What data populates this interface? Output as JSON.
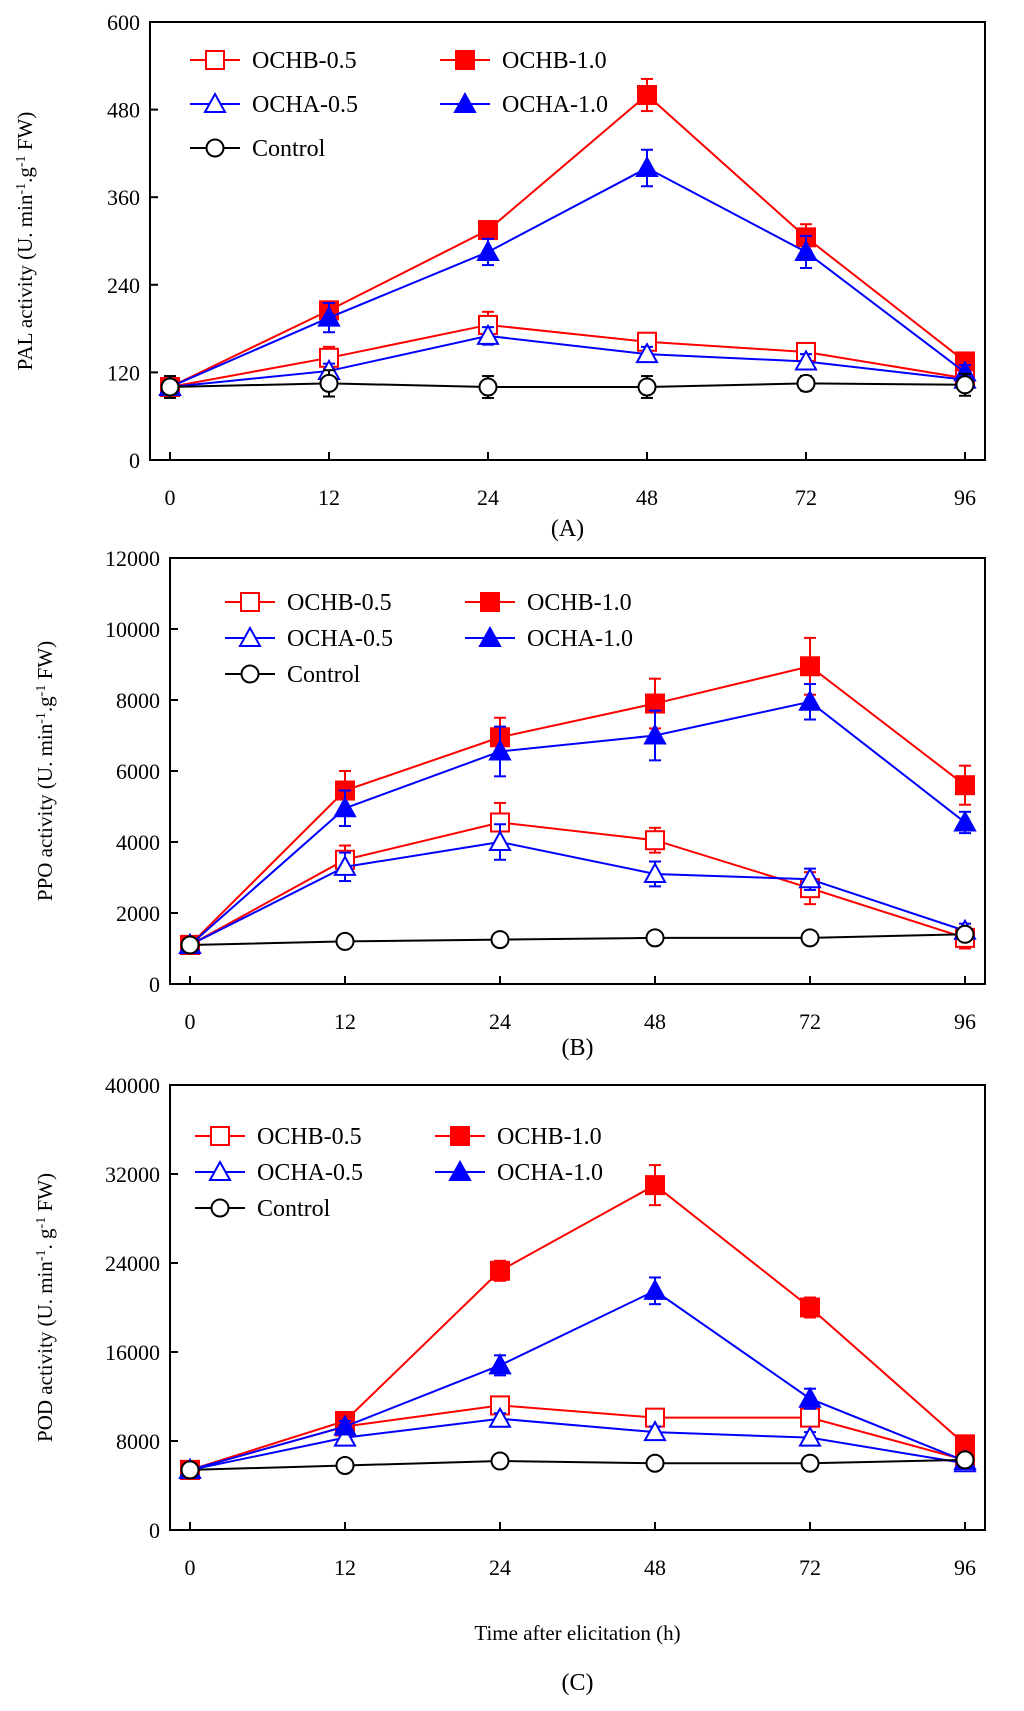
{
  "chart_data": [
    {
      "type": "line",
      "panel_label": "(A)",
      "title": "",
      "xlabel": "",
      "ylabel_parts": [
        "PAL activity (U. min",
        "-1",
        ".g",
        "-1",
        " FW)"
      ],
      "x_categories": [
        "0",
        "12",
        "24",
        "48",
        "72",
        "96"
      ],
      "y_ticks": [
        "0",
        "120",
        "240",
        "360",
        "480",
        "600"
      ],
      "ylim": [
        0,
        600
      ],
      "grid": false,
      "legend_position": "top-left",
      "series": [
        {
          "name": "OCHB-0.5",
          "color": "#ff0000",
          "marker": "square-open",
          "values": [
            100,
            140,
            185,
            162,
            148,
            112
          ],
          "errors": [
            8,
            15,
            18,
            12,
            10,
            8
          ]
        },
        {
          "name": "OCHB-1.0",
          "color": "#ff0000",
          "marker": "square-filled",
          "values": [
            100,
            205,
            315,
            500,
            305,
            135
          ],
          "errors": [
            8,
            12,
            10,
            22,
            18,
            10
          ]
        },
        {
          "name": "OCHA-0.5",
          "color": "#0000ff",
          "marker": "triangle-open",
          "values": [
            100,
            122,
            170,
            145,
            135,
            110
          ],
          "errors": [
            8,
            10,
            12,
            10,
            10,
            8
          ]
        },
        {
          "name": "OCHA-1.0",
          "color": "#0000ff",
          "marker": "triangle-filled",
          "values": [
            100,
            195,
            285,
            400,
            285,
            120
          ],
          "errors": [
            8,
            20,
            18,
            25,
            22,
            10
          ]
        },
        {
          "name": "Control",
          "color": "#000000",
          "marker": "circle-open",
          "values": [
            100,
            105,
            100,
            100,
            105,
            103
          ],
          "errors": [
            15,
            18,
            15,
            15,
            10,
            15
          ]
        }
      ]
    },
    {
      "type": "line",
      "panel_label": "(B)",
      "title": "",
      "xlabel": "",
      "ylabel_parts": [
        "PPO activity (U. min",
        "-1",
        ".g",
        "-1",
        " FW)"
      ],
      "x_categories": [
        "0",
        "12",
        "24",
        "48",
        "72",
        "96"
      ],
      "y_ticks": [
        "0",
        "2000",
        "4000",
        "6000",
        "8000",
        "10000",
        "12000"
      ],
      "ylim": [
        0,
        12000
      ],
      "grid": false,
      "legend_position": "top-left",
      "series": [
        {
          "name": "OCHB-0.5",
          "color": "#ff0000",
          "marker": "square-open",
          "values": [
            1100,
            3500,
            4550,
            4050,
            2700,
            1300
          ],
          "errors": [
            150,
            400,
            550,
            350,
            450,
            300
          ]
        },
        {
          "name": "OCHB-1.0",
          "color": "#ff0000",
          "marker": "square-filled",
          "values": [
            1100,
            5450,
            6950,
            7900,
            8950,
            5600
          ],
          "errors": [
            150,
            550,
            550,
            700,
            800,
            550
          ]
        },
        {
          "name": "OCHA-0.5",
          "color": "#0000ff",
          "marker": "triangle-open",
          "values": [
            1100,
            3300,
            4000,
            3100,
            2950,
            1500
          ],
          "errors": [
            150,
            400,
            500,
            350,
            300,
            200
          ]
        },
        {
          "name": "OCHA-1.0",
          "color": "#0000ff",
          "marker": "triangle-filled",
          "values": [
            1100,
            4950,
            6550,
            7000,
            7950,
            4550
          ],
          "errors": [
            150,
            500,
            700,
            700,
            500,
            300
          ]
        },
        {
          "name": "Control",
          "color": "#000000",
          "marker": "circle-open",
          "values": [
            1100,
            1200,
            1250,
            1300,
            1300,
            1400
          ],
          "errors": [
            100,
            150,
            100,
            100,
            100,
            100
          ]
        }
      ]
    },
    {
      "type": "line",
      "panel_label": "(C)",
      "title": "",
      "xlabel": "Time after elicitation (h)",
      "ylabel_parts": [
        "POD activity (U. min",
        "-1",
        ". g",
        "-1",
        " FW)"
      ],
      "x_categories": [
        "0",
        "12",
        "24",
        "48",
        "72",
        "96"
      ],
      "y_ticks": [
        "0",
        "8000",
        "16000",
        "24000",
        "32000",
        "40000"
      ],
      "ylim": [
        0,
        40000
      ],
      "grid": false,
      "legend_position": "top-left",
      "series": [
        {
          "name": "OCHB-0.5",
          "color": "#ff0000",
          "marker": "square-open",
          "values": [
            5400,
            9300,
            11200,
            10100,
            10100,
            6300
          ],
          "errors": [
            400,
            500,
            500,
            500,
            700,
            400
          ]
        },
        {
          "name": "OCHB-1.0",
          "color": "#ff0000",
          "marker": "square-filled",
          "values": [
            5400,
            9800,
            23300,
            31000,
            20000,
            7700
          ],
          "errors": [
            400,
            500,
            900,
            1800,
            900,
            500
          ]
        },
        {
          "name": "OCHA-0.5",
          "color": "#0000ff",
          "marker": "triangle-open",
          "values": [
            5400,
            8300,
            10000,
            8800,
            8300,
            6000
          ],
          "errors": [
            400,
            500,
            500,
            500,
            500,
            400
          ]
        },
        {
          "name": "OCHA-1.0",
          "color": "#0000ff",
          "marker": "triangle-filled",
          "values": [
            5400,
            9300,
            14800,
            21500,
            11800,
            6200
          ],
          "errors": [
            400,
            500,
            900,
            1200,
            900,
            400
          ]
        },
        {
          "name": "Control",
          "color": "#000000",
          "marker": "circle-open",
          "values": [
            5400,
            5800,
            6200,
            6000,
            6000,
            6300
          ],
          "errors": [
            300,
            300,
            300,
            300,
            300,
            300
          ]
        }
      ]
    }
  ]
}
